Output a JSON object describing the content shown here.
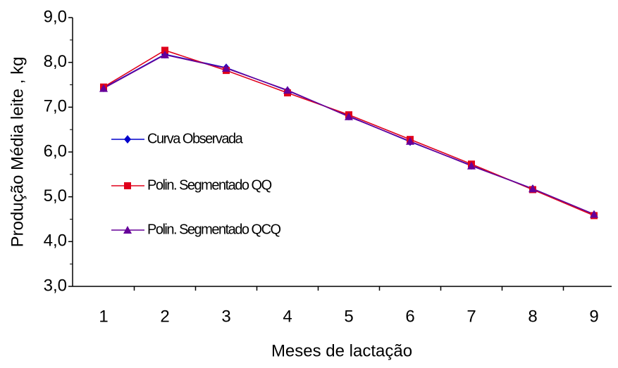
{
  "chart_data": {
    "type": "line",
    "xlabel": "Meses de  lactação",
    "ylabel": "Produção  Média  leite , kg",
    "categories": [
      "1",
      "2",
      "3",
      "4",
      "5",
      "6",
      "7",
      "8",
      "9"
    ],
    "series": [
      {
        "name": "Curva Observada",
        "color": "#0000cc",
        "marker": "diamond",
        "values": [
          7.43,
          8.18,
          7.88,
          7.37,
          6.8,
          6.23,
          5.7,
          5.18,
          4.6
        ]
      },
      {
        "name": "Polin. Segmentado QQ",
        "color": "#e0001b",
        "marker": "square",
        "values": [
          7.45,
          8.27,
          7.82,
          7.32,
          6.83,
          6.28,
          5.73,
          5.16,
          4.58
        ]
      },
      {
        "name": "Polin. Segmentado QCQ",
        "color": "#660099",
        "marker": "triangle",
        "values": [
          7.42,
          8.17,
          7.87,
          7.38,
          6.79,
          6.24,
          5.69,
          5.18,
          4.61
        ]
      }
    ],
    "ylim": [
      3,
      9
    ],
    "yticks": [
      {
        "value": 3,
        "label": "3,0"
      },
      {
        "value": 4,
        "label": "4,0"
      },
      {
        "value": 5,
        "label": "5,0"
      },
      {
        "value": 6,
        "label": "6,0"
      },
      {
        "value": 7,
        "label": "7,0"
      },
      {
        "value": 8,
        "label": "8,0"
      },
      {
        "value": 9,
        "label": "9,0"
      }
    ],
    "grid": false,
    "legend": "left"
  }
}
